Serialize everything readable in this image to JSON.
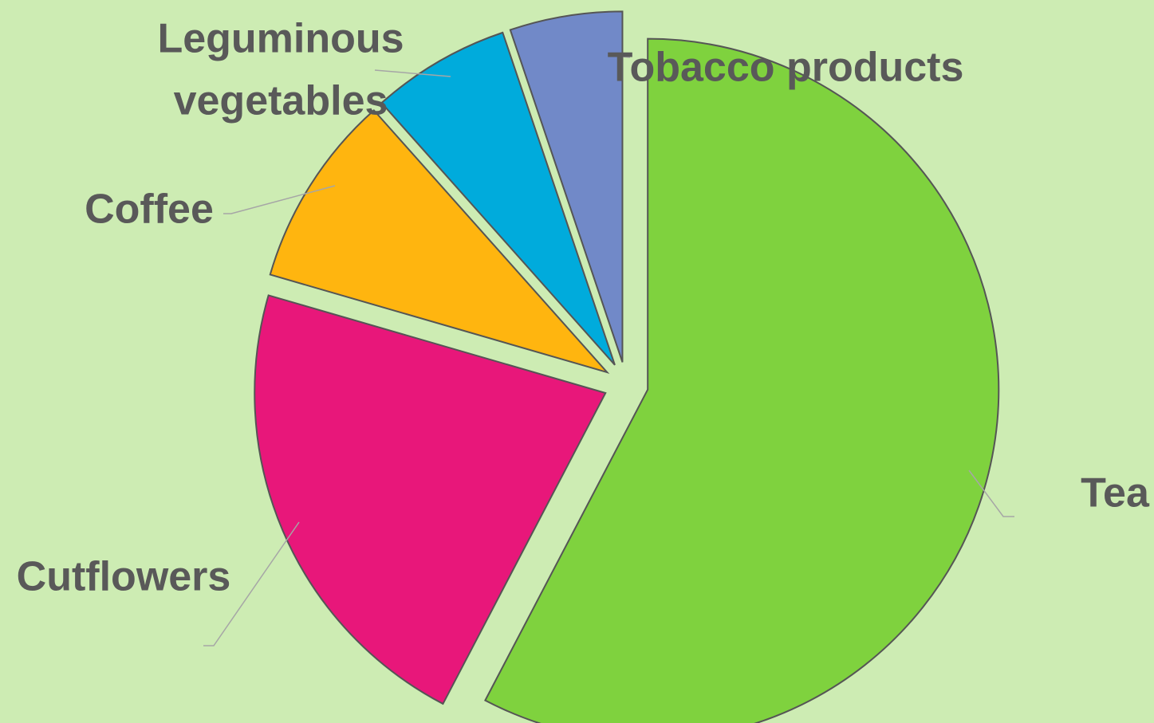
{
  "chart_data": {
    "type": "pie",
    "title": "",
    "categories": [
      "Tea",
      "Cutflowers",
      "Coffee",
      "Leguminous vegetables",
      "Tobacco products"
    ],
    "values": [
      56.8,
      21.5,
      8.8,
      6.3,
      5.1
    ],
    "label_lines": [
      [
        "Tea"
      ],
      [
        "Cutflowers"
      ],
      [
        "Coffee"
      ],
      [
        "Leguminous",
        "vegetables"
      ],
      [
        "Tobacco products"
      ]
    ],
    "colors": [
      "#7fd23e",
      "#e8177a",
      "#ffb50f",
      "#00abdc",
      "#7189c8"
    ],
    "start_angle_deg": 0,
    "direction": "clockwise",
    "exploded": true,
    "legend": "none",
    "grid": false
  }
}
